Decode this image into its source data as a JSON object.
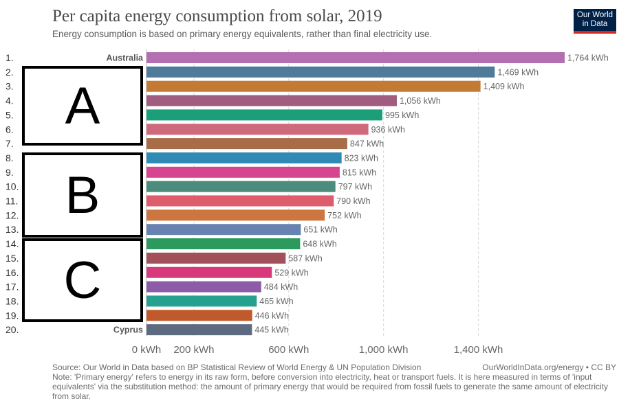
{
  "header": {
    "title": "Per capita energy consumption from solar, 2019",
    "subtitle": "Energy consumption is based on primary energy equivalents, rather than final electricity use.",
    "logo_line1": "Our World",
    "logo_line2": "in Data"
  },
  "chart_data": {
    "type": "bar",
    "orientation": "horizontal",
    "title": "Per capita energy consumption from solar, 2019",
    "unit": "kWh",
    "ranks": [
      "1.",
      "2.",
      "3.",
      "4.",
      "5.",
      "6.",
      "7.",
      "8.",
      "9.",
      "10.",
      "11.",
      "12.",
      "13.",
      "14.",
      "15.",
      "16.",
      "17.",
      "18.",
      "19.",
      "20."
    ],
    "categories": [
      "Australia",
      "",
      "",
      "",
      "",
      "",
      "",
      "",
      "",
      "",
      "",
      "",
      "",
      "",
      "",
      "",
      "",
      "",
      "",
      "Cyprus"
    ],
    "values": [
      1764,
      1469,
      1409,
      1056,
      995,
      936,
      847,
      823,
      815,
      797,
      790,
      752,
      651,
      648,
      587,
      529,
      484,
      465,
      446,
      445
    ],
    "value_labels": [
      "1,764 kWh",
      "1,469 kWh",
      "1,409 kWh",
      "1,056 kWh",
      "995 kWh",
      "936 kWh",
      "847 kWh",
      "823 kWh",
      "815 kWh",
      "797 kWh",
      "790 kWh",
      "752 kWh",
      "651 kWh",
      "648 kWh",
      "587 kWh",
      "529 kWh",
      "484 kWh",
      "465 kWh",
      "446 kWh",
      "445 kWh"
    ],
    "colors": [
      "#b36fb1",
      "#4f7a99",
      "#c27a35",
      "#a05d80",
      "#1c9e79",
      "#cf6a7c",
      "#a86c47",
      "#2f8ab5",
      "#d7448f",
      "#4c8c7c",
      "#de5d6d",
      "#cd7641",
      "#6883b2",
      "#2b9a5c",
      "#a2505a",
      "#d8397a",
      "#8d5ca8",
      "#26a08f",
      "#c05a2c",
      "#5e6a80"
    ],
    "x_ticks": [
      0,
      200,
      600,
      1000,
      1400
    ],
    "x_tick_labels": [
      "0 kWh",
      "200 kWh",
      "600 kWh",
      "1,000 kWh",
      "1,400 kWh"
    ],
    "xlim": [
      0,
      1764
    ],
    "grid": true
  },
  "overlays": [
    {
      "label": "A"
    },
    {
      "label": "B"
    },
    {
      "label": "C"
    }
  ],
  "footer": {
    "source": "Source: Our World in Data based on BP Statistical Review of World Energy & UN Population Division",
    "credit": "OurWorldInData.org/energy • CC BY",
    "note": "Note: 'Primary energy' refers to energy in its raw form, before conversion into electricity, heat or transport fuels. It is here measured in terms of 'input equivalents' via the substitution method: the amount of primary energy that would be required from fossil fuels to generate the same amount of electricity from solar."
  }
}
